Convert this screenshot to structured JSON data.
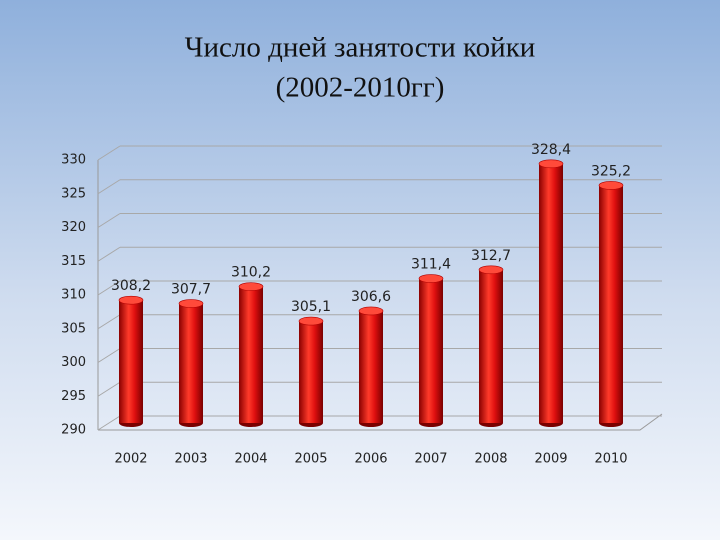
{
  "chart_data": {
    "type": "bar",
    "title": [
      "Число дней занятости койки",
      "(2002-2010гг)"
    ],
    "categories": [
      "2002",
      "2003",
      "2004",
      "2005",
      "2006",
      "2007",
      "2008",
      "2009",
      "2010"
    ],
    "values": [
      308.2,
      307.7,
      310.2,
      305.1,
      306.6,
      311.4,
      312.7,
      328.4,
      325.2
    ],
    "value_labels": [
      "308,2",
      "307,7",
      "310,2",
      "305,1",
      "306,6",
      "311,4",
      "312,7",
      "328,4",
      "325,2"
    ],
    "color": "#e01010",
    "ylim": [
      290,
      330
    ],
    "yticks": [
      290,
      295,
      300,
      305,
      310,
      315,
      320,
      325,
      330
    ],
    "grid": true
  }
}
